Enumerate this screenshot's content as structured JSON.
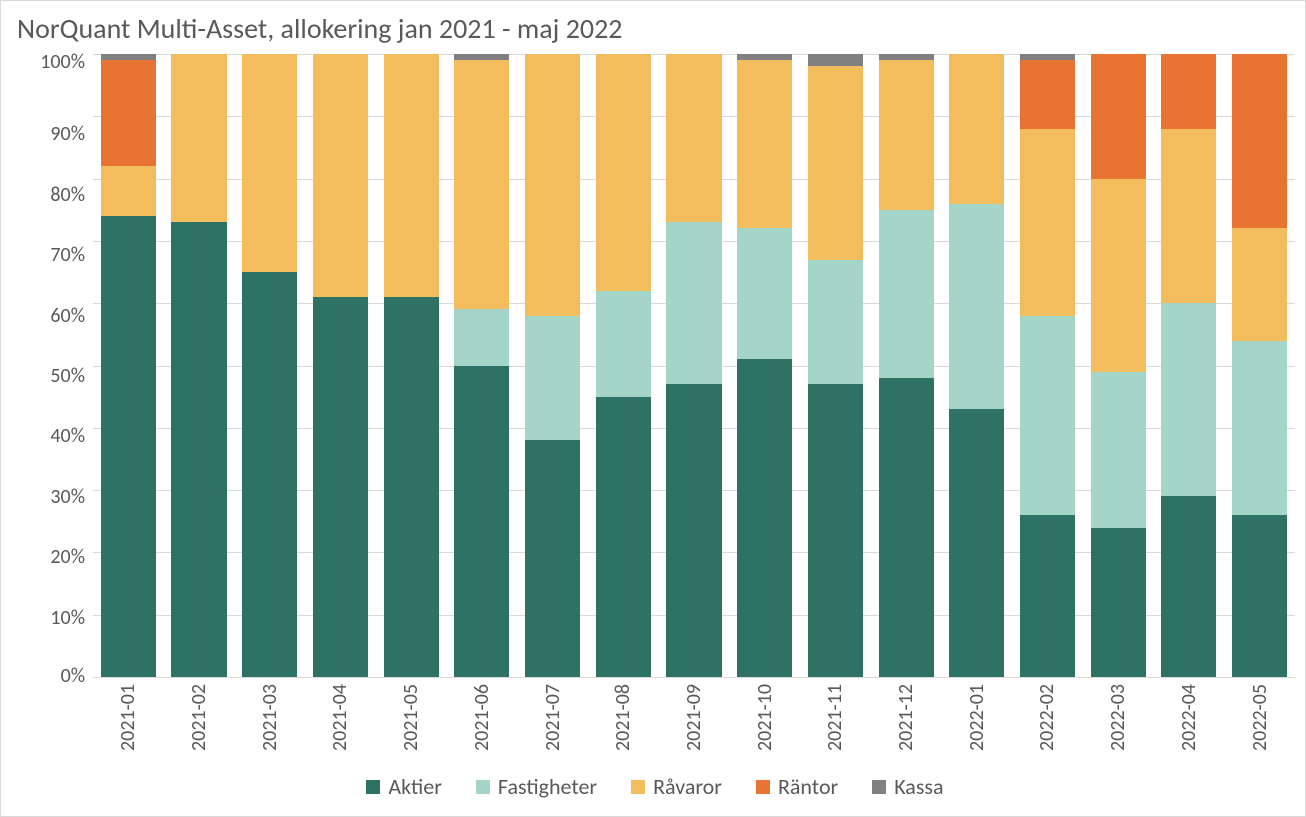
{
  "chart": {
    "type": "stacked-bar-100pct",
    "title": "NorQuant Multi-Asset, allokering jan 2021 - maj 2022",
    "title_fontsize": 28,
    "title_color": "#595959",
    "background_color": "#ffffff",
    "border_color": "#d9d9d9",
    "grid_color": "#d9d9d9",
    "axis_label_color": "#595959",
    "axis_label_fontsize": 20,
    "legend_fontsize": 22,
    "bar_width_ratio": 0.78,
    "y_axis": {
      "min": 0,
      "max": 100,
      "tick_step": 10,
      "tick_labels": [
        "100%",
        "90%",
        "80%",
        "70%",
        "60%",
        "50%",
        "40%",
        "30%",
        "20%",
        "10%",
        "0%"
      ]
    },
    "series": [
      {
        "key": "aktier",
        "label": "Aktier",
        "color": "#2e7265"
      },
      {
        "key": "fastigheter",
        "label": "Fastigheter",
        "color": "#a4d5c8"
      },
      {
        "key": "ravaror",
        "label": "Råvaror",
        "color": "#f3bd5e"
      },
      {
        "key": "rantor",
        "label": "Räntor",
        "color": "#e97332"
      },
      {
        "key": "kassa",
        "label": "Kassa",
        "color": "#808080"
      }
    ],
    "categories": [
      "2021-01",
      "2021-02",
      "2021-03",
      "2021-04",
      "2021-05",
      "2021-06",
      "2021-07",
      "2021-08",
      "2021-09",
      "2021-10",
      "2021-11",
      "2021-12",
      "2022-01",
      "2022-02",
      "2022-03",
      "2022-04",
      "2022-05"
    ],
    "data": [
      {
        "aktier": 74,
        "fastigheter": 0,
        "ravaror": 8,
        "rantor": 17,
        "kassa": 1
      },
      {
        "aktier": 73,
        "fastigheter": 0,
        "ravaror": 27,
        "rantor": 0,
        "kassa": 0
      },
      {
        "aktier": 65,
        "fastigheter": 0,
        "ravaror": 35,
        "rantor": 0,
        "kassa": 0
      },
      {
        "aktier": 61,
        "fastigheter": 0,
        "ravaror": 39,
        "rantor": 0,
        "kassa": 0
      },
      {
        "aktier": 61,
        "fastigheter": 0,
        "ravaror": 39,
        "rantor": 0,
        "kassa": 0
      },
      {
        "aktier": 50,
        "fastigheter": 9,
        "ravaror": 40,
        "rantor": 0,
        "kassa": 1
      },
      {
        "aktier": 38,
        "fastigheter": 20,
        "ravaror": 42,
        "rantor": 0,
        "kassa": 0
      },
      {
        "aktier": 45,
        "fastigheter": 17,
        "ravaror": 38,
        "rantor": 0,
        "kassa": 0
      },
      {
        "aktier": 47,
        "fastigheter": 26,
        "ravaror": 27,
        "rantor": 0,
        "kassa": 0
      },
      {
        "aktier": 51,
        "fastigheter": 21,
        "ravaror": 27,
        "rantor": 0,
        "kassa": 1
      },
      {
        "aktier": 47,
        "fastigheter": 20,
        "ravaror": 31,
        "rantor": 0,
        "kassa": 2
      },
      {
        "aktier": 48,
        "fastigheter": 27,
        "ravaror": 24,
        "rantor": 0,
        "kassa": 1
      },
      {
        "aktier": 43,
        "fastigheter": 33,
        "ravaror": 24,
        "rantor": 0,
        "kassa": 0
      },
      {
        "aktier": 26,
        "fastigheter": 32,
        "ravaror": 30,
        "rantor": 11,
        "kassa": 1
      },
      {
        "aktier": 24,
        "fastigheter": 25,
        "ravaror": 31,
        "rantor": 20,
        "kassa": 0
      },
      {
        "aktier": 29,
        "fastigheter": 31,
        "ravaror": 28,
        "rantor": 12,
        "kassa": 0
      },
      {
        "aktier": 26,
        "fastigheter": 28,
        "ravaror": 18,
        "rantor": 28,
        "kassa": 0
      }
    ]
  }
}
